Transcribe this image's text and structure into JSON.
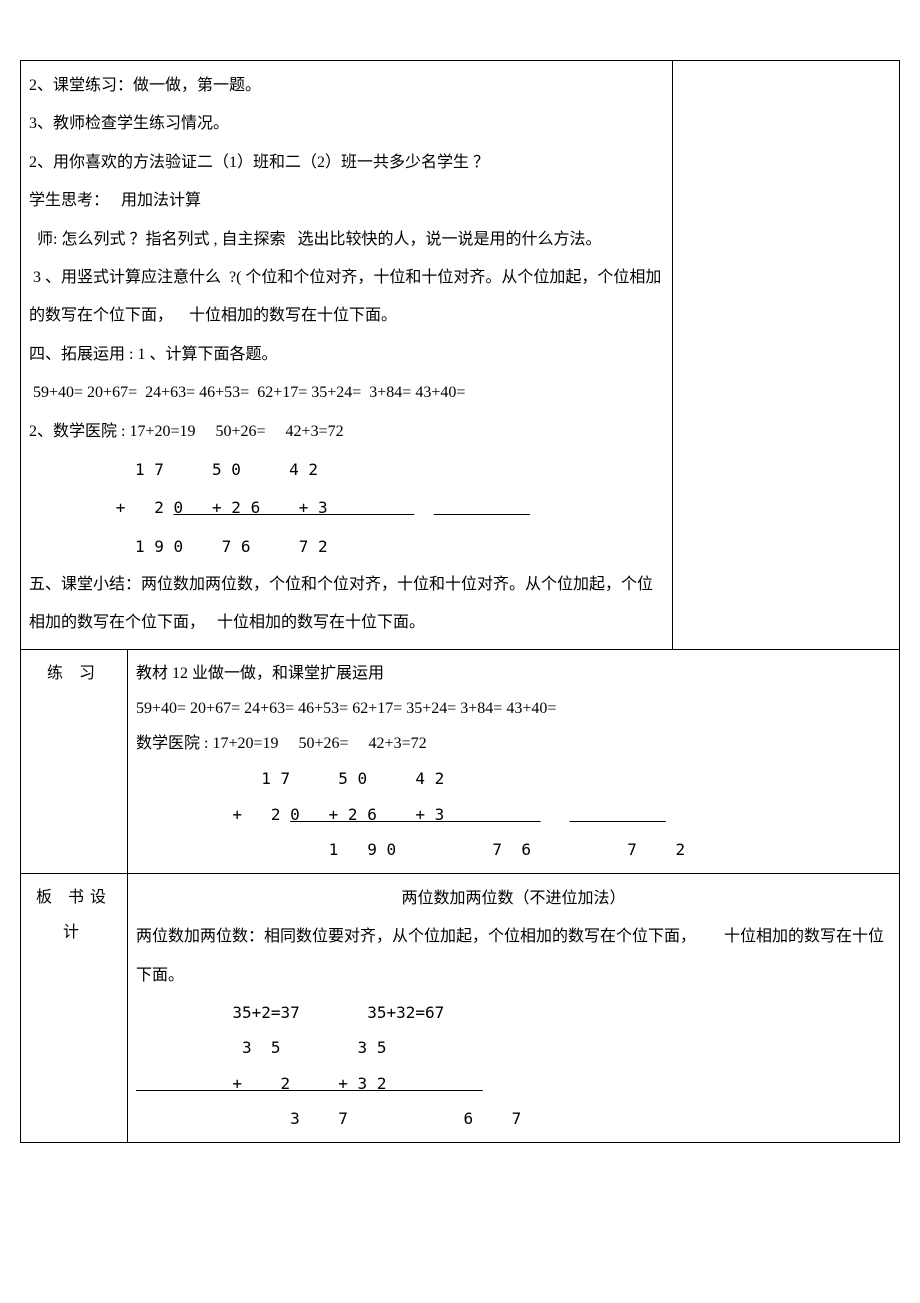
{
  "main": {
    "p1": "2、课堂练习：做一做，第一题。",
    "p2": "3、教师检查学生练习情况。",
    "p3": "2、用你喜欢的方法验证二（1）班和二（2）班一共多少名学生 ？",
    "p4a": "学生思考：",
    "p4b": "用加法计算",
    "p5": "  师: 怎么列式 ？指名列式 , 自主探索   选出比较快的人，说一说是用的什么方法。",
    "p6": " 3 、用竖式计算应注意什么  ?( 个位和个位对齐，十位和十位对齐。从个位加起，个位相加的数写在个位下面，    十位相加的数写在十位下面。",
    "p7": "四、拓展运用 : 1 、计算下面各题。",
    "p8": " 59+40= 20+67=  24+63= 46+53=  62+17= 35+24=  3+84= 43+40=",
    "p9": "2、数学医院 : 17+20=19     50+26=     42+3=72",
    "v1": "           1 7     5 0     4 2",
    "v2a": "         +   2 ",
    "v2b": "0   + 2 6    ",
    "v2c": "+ 3",
    "v2d": "         ",
    "v2e": "          ",
    "v3": "           1 9 0    7 6     7 2",
    "p10": "五、课堂小结：两位数加两位数，个位和个位对齐，十位和十位对齐。从个位加起，个位相加的数写在个位下面，   十位相加的数写在十位下面。"
  },
  "practice": {
    "label": "练 习",
    "p1": "教材 12 业做一做，和课堂扩展运用",
    "p2": "59+40= 20+67= 24+63= 46+53= 62+17= 35+24= 3+84= 43+40=",
    "p3": "数学医院 : 17+20=19     50+26=     42+3=72",
    "v1": "             1 7     5 0     4 2",
    "v2a": "          +   2 ",
    "v2b": "0   + 2 6    ",
    "v2c": "+ 3",
    "v2d": "          ",
    "v2e": "          ",
    "v3": "                    1   9 0          7  6          7    2"
  },
  "board": {
    "label": "板 书设 计",
    "title": "两位数加两位数（不进位加法）",
    "p1": "两位数加两位数：相同数位要对齐，从个位加起，个位相加的数写在个位下面，       十位相加的数写在十位下面。",
    "p2": "          35+2=37       35+32=67",
    "v1": "           3  5        3 5",
    "v2a": "          +    2     + 3 2",
    "v2b": "          ",
    "v3": "                3    7            6    7"
  }
}
